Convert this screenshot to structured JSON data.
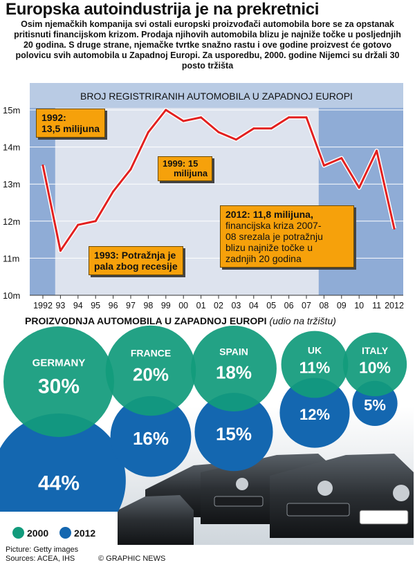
{
  "title": "Europska autoindustrija je na prekretnici",
  "intro": "Osim njemačkih kompanija svi ostali europski proizvođači automobila bore se za opstanak pritisnuti financijskom krizom. Prodaja njihovih automobila blizu je najniže točke u posljednjih 20 godina. S druge strane, njemačke tvrtke snažno rastu i ove godine proizvest će gotovo polovicu svih automobila u Zapadnoj Europi. Za usporedbu, 2000. godine Nijemci su držali 30 posto tržišta",
  "chart_data": [
    {
      "type": "line",
      "title": "BROJ REGISTRIRANIH AUTOMOBILA U ZAPADNOJ EUROPI",
      "x": [
        1992,
        1993,
        1994,
        1995,
        1996,
        1997,
        1998,
        1999,
        2000,
        2001,
        2002,
        2003,
        2004,
        2005,
        2006,
        2007,
        2008,
        2009,
        2010,
        2011,
        2012
      ],
      "x_tick_labels": [
        "1992",
        "93",
        "94",
        "95",
        "96",
        "97",
        "98",
        "99",
        "00",
        "01",
        "02",
        "03",
        "04",
        "05",
        "06",
        "07",
        "08",
        "09",
        "10",
        "11",
        "2012"
      ],
      "series": [
        {
          "values": [
            13.5,
            11.2,
            11.9,
            12.0,
            12.8,
            13.4,
            14.4,
            15.0,
            14.7,
            14.8,
            14.4,
            14.2,
            14.5,
            14.5,
            14.8,
            14.8,
            13.5,
            13.7,
            12.9,
            13.9,
            11.8
          ]
        }
      ],
      "y_tick_labels": [
        "15m",
        "14m",
        "13m",
        "12m",
        "11m",
        "10m"
      ],
      "ylim": [
        10,
        15.5
      ],
      "shaded_periods": [
        [
          1992,
          1993
        ],
        [
          2008,
          2012
        ]
      ],
      "annotations": [
        {
          "id": "1992",
          "lines": [
            "1992:",
            "13,5 milijuna"
          ]
        },
        {
          "id": "1993",
          "lines": [
            "1993: Potražnja je",
            "pala zbog recesije"
          ]
        },
        {
          "id": "1999",
          "lines": [
            "1999: 15",
            "milijuna"
          ]
        },
        {
          "id": "2012",
          "lead": "2012: 11,8 milijuna,",
          "lines": [
            "financijska kriza 2007-",
            "08 srezala je potražnju",
            "blizu najniže točke u",
            "zadnjih 20 godina"
          ]
        }
      ]
    },
    {
      "type": "bubble",
      "title": "PROIZVODNJA AUTOMOBILA U ZAPADNOJ EUROPI",
      "subtitle": "(udio na tržištu)",
      "categories": [
        "GERMANY",
        "FRANCE",
        "SPAIN",
        "UK",
        "ITALY"
      ],
      "series": [
        {
          "name": "2000",
          "values": [
            30,
            20,
            18,
            11,
            10
          ],
          "labels": [
            "30%",
            "20%",
            "18%",
            "11%",
            "10%"
          ]
        },
        {
          "name": "2012",
          "values": [
            44,
            16,
            15,
            12,
            5
          ],
          "labels": [
            "44%",
            "16%",
            "15%",
            "12%",
            "5%"
          ]
        }
      ]
    }
  ],
  "legend": [
    {
      "label": "2000",
      "color": "#129b7c"
    },
    {
      "label": "2012",
      "color": "#1467b0"
    }
  ],
  "colors": {
    "line": "#e2201f",
    "panel": "#dde3ee",
    "shade": "#8facd6",
    "note": "#f6a10b"
  },
  "credits": {
    "picture": "Picture: Getty images",
    "sources": "Sources: ACEA, IHS",
    "copyright": "© GRAPHIC NEWS"
  }
}
